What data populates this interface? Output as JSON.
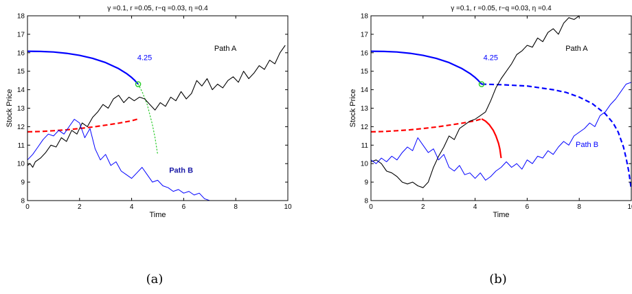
{
  "chart_data": [
    {
      "type": "line",
      "caption": "(a)",
      "title": "γ =0.1, r =0.05, r−q =0.03, η =0.4",
      "xlabel": "Time",
      "ylabel": "Stock Price",
      "xlim": [
        0,
        10
      ],
      "ylim": [
        8,
        18
      ],
      "xticks": [
        "0",
        "2",
        "4",
        "6",
        "8",
        "10"
      ],
      "yticks": [
        "8",
        "9",
        "10",
        "11",
        "12",
        "13",
        "14",
        "15",
        "16",
        "17",
        "18"
      ],
      "grid": false,
      "annotations": [
        {
          "text": "4.25",
          "x": 4.5,
          "y": 15.6,
          "color": "#0000ff",
          "bold": false
        },
        {
          "text": "Path A",
          "x": 7.6,
          "y": 16.1,
          "color": "#000000",
          "bold": false
        },
        {
          "text": "Path B",
          "x": 5.9,
          "y": 9.5,
          "color": "#1a1aa6",
          "bold": true
        }
      ],
      "series": [
        {
          "color": "#0000ff",
          "style": "solid",
          "width": 2.2,
          "x": [
            0,
            0.5,
            1.0,
            1.5,
            2.0,
            2.5,
            3.0,
            3.5,
            3.8,
            4.0,
            4.1,
            4.25
          ],
          "y": [
            16.08,
            16.07,
            16.04,
            15.97,
            15.86,
            15.7,
            15.47,
            15.14,
            14.88,
            14.66,
            14.53,
            14.3
          ]
        },
        {
          "color": "#2ecc2e",
          "style": "dotted",
          "width": 1.2,
          "x": [
            4.25,
            4.4,
            4.6,
            4.8,
            4.9,
            5.0
          ],
          "y": [
            14.3,
            13.9,
            13.2,
            12.1,
            11.4,
            10.5
          ]
        },
        {
          "color": "#ff0000",
          "style": "dashed",
          "width": 2.2,
          "x": [
            0,
            0.5,
            1.0,
            1.5,
            2.0,
            2.5,
            3.0,
            3.5,
            4.0,
            4.25
          ],
          "y": [
            11.72,
            11.74,
            11.78,
            11.83,
            11.9,
            11.98,
            12.08,
            12.19,
            12.32,
            12.42
          ]
        },
        {
          "color": "#000000",
          "style": "solid",
          "width": 1.1,
          "x": [
            0,
            0.1,
            0.2,
            0.3,
            0.5,
            0.7,
            0.9,
            1.1,
            1.3,
            1.5,
            1.7,
            1.9,
            2.1,
            2.3,
            2.5,
            2.7,
            2.9,
            3.1,
            3.3,
            3.5,
            3.7,
            3.9,
            4.1,
            4.3,
            4.5,
            4.7,
            4.9,
            5.1,
            5.3,
            5.5,
            5.7,
            5.9,
            6.1,
            6.3,
            6.5,
            6.7,
            6.9,
            7.1,
            7.3,
            7.5,
            7.7,
            7.9,
            8.1,
            8.3,
            8.5,
            8.7,
            8.9,
            9.1,
            9.3,
            9.5,
            9.7,
            9.9
          ],
          "y": [
            9.9,
            10.0,
            9.8,
            10.1,
            10.3,
            10.6,
            11.0,
            10.9,
            11.4,
            11.2,
            11.8,
            11.6,
            12.2,
            12.0,
            12.5,
            12.8,
            13.2,
            13.0,
            13.5,
            13.7,
            13.3,
            13.6,
            13.4,
            13.6,
            13.5,
            13.2,
            12.9,
            13.3,
            13.1,
            13.6,
            13.4,
            13.9,
            13.5,
            13.8,
            14.5,
            14.2,
            14.6,
            14.0,
            14.3,
            14.1,
            14.5,
            14.7,
            14.4,
            15.0,
            14.6,
            14.9,
            15.3,
            15.1,
            15.6,
            15.4,
            16.0,
            16.4
          ]
        },
        {
          "color": "#0000ff",
          "style": "solid",
          "width": 1.0,
          "x": [
            0,
            0.2,
            0.4,
            0.6,
            0.8,
            1.0,
            1.2,
            1.4,
            1.6,
            1.8,
            2.0,
            2.2,
            2.4,
            2.6,
            2.8,
            3.0,
            3.2,
            3.4,
            3.6,
            3.8,
            4.0,
            4.2,
            4.4,
            4.6,
            4.8,
            5.0,
            5.2,
            5.4,
            5.6,
            5.8,
            6.0,
            6.2,
            6.4,
            6.6,
            6.8,
            7.0
          ],
          "y": [
            10.2,
            10.5,
            10.9,
            11.3,
            11.6,
            11.5,
            11.8,
            11.6,
            12.0,
            12.4,
            12.2,
            11.4,
            11.9,
            10.8,
            10.2,
            10.5,
            9.9,
            10.1,
            9.6,
            9.4,
            9.2,
            9.5,
            9.8,
            9.4,
            9.0,
            9.1,
            8.8,
            8.7,
            8.5,
            8.6,
            8.4,
            8.5,
            8.3,
            8.4,
            8.1,
            8.0
          ]
        }
      ],
      "marker": {
        "x": 4.25,
        "y": 14.3,
        "color": "#22cc22"
      }
    },
    {
      "type": "line",
      "caption": "(b)",
      "title": "γ =0.1, r =0.05, r−q =0.03, η =0.4",
      "xlabel": "Time",
      "ylabel": "Stock Price",
      "xlim": [
        0,
        10
      ],
      "ylim": [
        8,
        18
      ],
      "xticks": [
        "0",
        "2",
        "4",
        "6",
        "8",
        "10"
      ],
      "yticks": [
        "8",
        "9",
        "10",
        "11",
        "12",
        "13",
        "14",
        "15",
        "16",
        "17",
        "18"
      ],
      "grid": false,
      "annotations": [
        {
          "text": "4.25",
          "x": 4.6,
          "y": 15.6,
          "color": "#0000ff",
          "bold": false
        },
        {
          "text": "Path A",
          "x": 7.9,
          "y": 16.1,
          "color": "#000000",
          "bold": false
        },
        {
          "text": "Path B",
          "x": 8.3,
          "y": 10.9,
          "color": "#0000ff",
          "bold": false
        }
      ],
      "series": [
        {
          "color": "#0000ff",
          "style": "solid",
          "width": 2.2,
          "x": [
            0,
            0.5,
            1.0,
            1.5,
            2.0,
            2.5,
            3.0,
            3.5,
            3.8,
            4.0,
            4.1,
            4.25
          ],
          "y": [
            16.08,
            16.07,
            16.04,
            15.97,
            15.86,
            15.7,
            15.47,
            15.14,
            14.88,
            14.66,
            14.53,
            14.3
          ]
        },
        {
          "color": "#0000ff",
          "style": "dashed",
          "width": 2.2,
          "x": [
            4.25,
            5.0,
            6.0,
            7.0,
            7.5,
            8.0,
            8.5,
            9.0,
            9.3,
            9.5,
            9.7,
            9.8,
            9.9,
            10.0
          ],
          "y": [
            14.3,
            14.27,
            14.2,
            14.0,
            13.85,
            13.6,
            13.25,
            12.7,
            12.2,
            11.7,
            10.9,
            10.3,
            9.6,
            8.6
          ]
        },
        {
          "color": "#ff0000",
          "style": "dashed",
          "width": 2.2,
          "x": [
            0,
            0.5,
            1.0,
            1.5,
            2.0,
            2.5,
            3.0,
            3.5,
            4.0,
            4.25
          ],
          "y": [
            11.72,
            11.74,
            11.78,
            11.83,
            11.9,
            11.98,
            12.08,
            12.19,
            12.32,
            12.42
          ]
        },
        {
          "color": "#ff0000",
          "style": "solid",
          "width": 2.2,
          "x": [
            4.25,
            4.4,
            4.55,
            4.7,
            4.8,
            4.9,
            4.95,
            5.0
          ],
          "y": [
            12.42,
            12.3,
            12.1,
            11.8,
            11.5,
            11.1,
            10.8,
            10.3
          ]
        },
        {
          "color": "#000000",
          "style": "solid",
          "width": 1.1,
          "x": [
            0,
            0.2,
            0.4,
            0.6,
            0.8,
            1.0,
            1.2,
            1.4,
            1.6,
            1.8,
            2.0,
            2.2,
            2.4,
            2.6,
            2.8,
            3.0,
            3.2,
            3.4,
            3.6,
            3.8,
            4.0,
            4.2,
            4.4,
            4.6,
            4.8,
            5.0,
            5.2,
            5.4,
            5.6,
            5.8,
            6.0,
            6.2,
            6.4,
            6.6,
            6.8,
            7.0,
            7.2,
            7.4,
            7.6,
            7.8,
            8.0
          ],
          "y": [
            10.1,
            10.2,
            10.0,
            9.6,
            9.5,
            9.3,
            9.0,
            8.9,
            9.0,
            8.8,
            8.7,
            9.0,
            9.8,
            10.4,
            10.9,
            11.5,
            11.3,
            11.9,
            12.1,
            12.3,
            12.4,
            12.6,
            12.8,
            13.4,
            14.1,
            14.6,
            15.0,
            15.4,
            15.9,
            16.1,
            16.4,
            16.3,
            16.8,
            16.6,
            17.1,
            17.3,
            17.0,
            17.6,
            17.9,
            17.8,
            18.0
          ]
        },
        {
          "color": "#0000ff",
          "style": "solid",
          "width": 1.0,
          "x": [
            0,
            0.2,
            0.4,
            0.6,
            0.8,
            1.0,
            1.2,
            1.4,
            1.6,
            1.8,
            2.0,
            2.2,
            2.4,
            2.6,
            2.8,
            3.0,
            3.2,
            3.4,
            3.6,
            3.8,
            4.0,
            4.2,
            4.4,
            4.6,
            4.8,
            5.0,
            5.2,
            5.4,
            5.6,
            5.8,
            6.0,
            6.2,
            6.4,
            6.6,
            6.8,
            7.0,
            7.2,
            7.4,
            7.6,
            7.8,
            8.0,
            8.2,
            8.4,
            8.6,
            8.8,
            9.0,
            9.2,
            9.4,
            9.6,
            9.8,
            10.0
          ],
          "y": [
            10.2,
            10.0,
            10.3,
            10.1,
            10.4,
            10.2,
            10.6,
            10.9,
            10.7,
            11.4,
            11.0,
            10.6,
            10.8,
            10.2,
            10.5,
            9.8,
            9.6,
            9.9,
            9.4,
            9.5,
            9.2,
            9.5,
            9.1,
            9.3,
            9.6,
            9.8,
            10.1,
            9.8,
            10.0,
            9.7,
            10.2,
            10.0,
            10.4,
            10.3,
            10.7,
            10.5,
            10.9,
            11.2,
            11.0,
            11.5,
            11.7,
            11.9,
            12.2,
            12.0,
            12.6,
            12.8,
            13.2,
            13.5,
            13.9,
            14.3,
            14.4
          ]
        }
      ],
      "marker": {
        "x": 4.25,
        "y": 14.3,
        "color": "#22cc22"
      }
    }
  ]
}
